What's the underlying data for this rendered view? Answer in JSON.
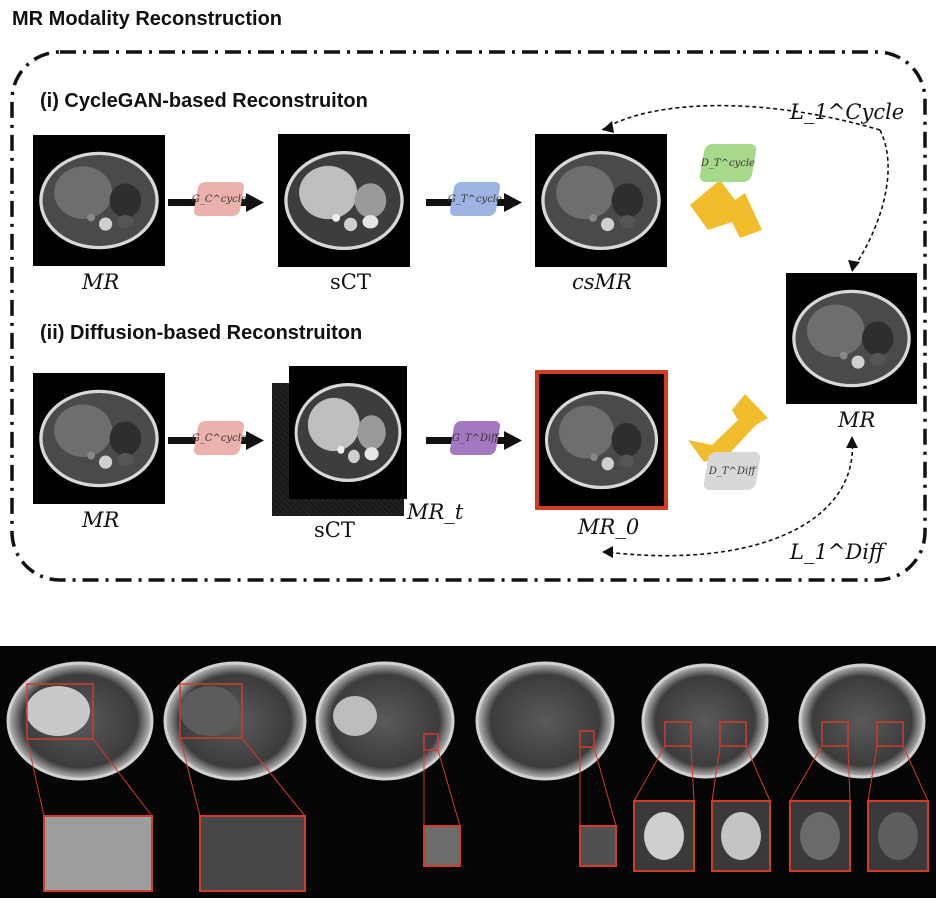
{
  "title": "MR Modality Reconstruction",
  "section1": {
    "label": "(i) CycleGAN-based Reconstruiton"
  },
  "section2": {
    "label": "(ii) Diffusion-based Reconstruiton"
  },
  "row1": {
    "input_label": "MR",
    "gen1": "G_C^cycle",
    "mid_label": "sCT",
    "gen2": "G_T^cycle",
    "out_label": "csMR",
    "disc": "D_T^cycle"
  },
  "row2": {
    "input_label": "MR",
    "gen1": "G_C^cycle",
    "mid_label": "sCT",
    "noise_label": "MR_t",
    "gen2": "G_T^Diff",
    "out_label": "MR_0",
    "disc": "D_T^Diff"
  },
  "target": {
    "label": "MR"
  },
  "losses": {
    "cycle": "L_1^Cycle",
    "diff": "L_1^Diff"
  },
  "colors": {
    "gen_c": "#ebb2ad",
    "gen_t_cycle": "#9db4e3",
    "gen_t_diff": "#a478c0",
    "disc_cycle": "#a7d98b",
    "disc_diff": "#d8d8d8",
    "arrow_yellow": "#f2bd2c",
    "highlight_red": "#d23a2a"
  }
}
